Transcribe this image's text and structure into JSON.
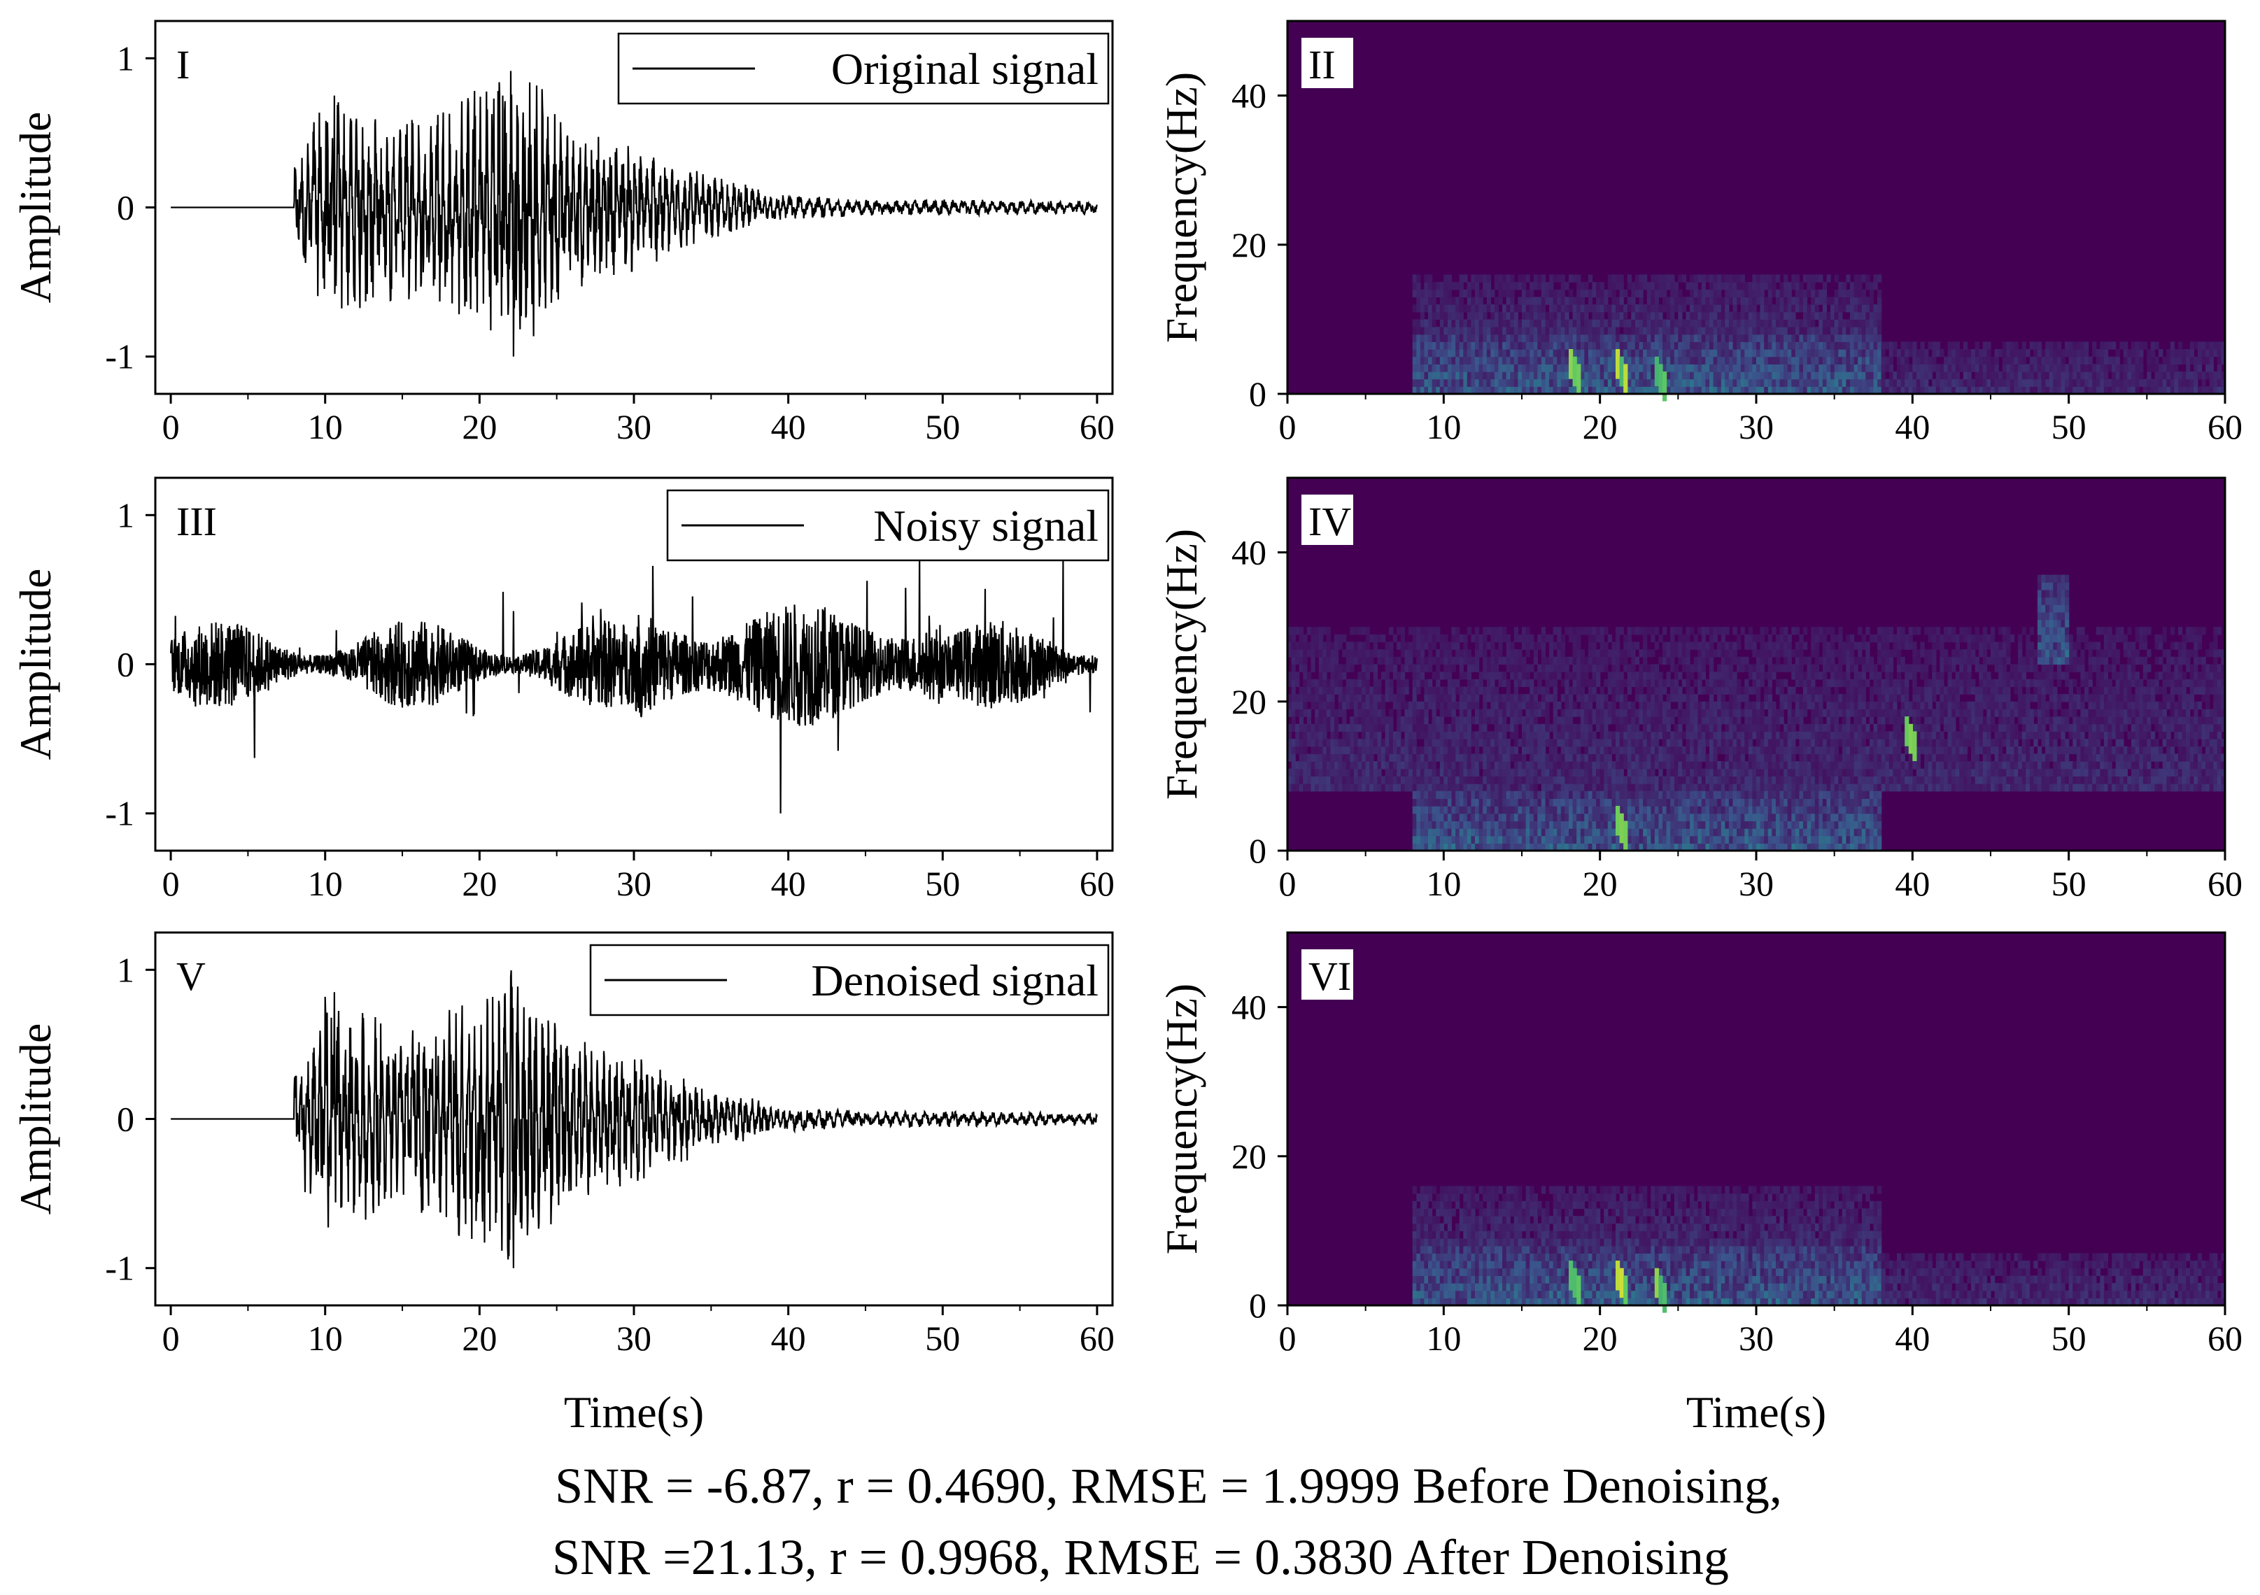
{
  "footer": {
    "line1": "SNR = -6.87, r = 0.4690, RMSE = 1.9999 Before Denoising,",
    "line2": "SNR =21.13, r = 0.9968, RMSE = 0.3830 After Denoising"
  },
  "colors": {
    "signal_line": "#000000",
    "spectrogram_background": "#440154",
    "colormap": [
      "#440154",
      "#3b528b",
      "#21918c",
      "#5ec962",
      "#fde725"
    ]
  },
  "chart_data": [
    {
      "id": "I",
      "type": "line",
      "panel_label": "I",
      "legend": "Original signal",
      "ylabel": "Amplitude",
      "xlabel": "Time(s)",
      "xlim": [
        -1,
        61
      ],
      "ylim": [
        -1.25,
        1.25
      ],
      "xticks": [
        "0",
        "10",
        "20",
        "30",
        "40",
        "50",
        "60"
      ],
      "yticks": [
        "1",
        "0",
        "-1"
      ],
      "series": [
        {
          "name": "Original signal",
          "onset_s": 8,
          "envelope": {
            "t": [
              8,
              10,
              15,
              20,
              22,
              26,
              30,
              35,
              38,
              40,
              45,
              50,
              60
            ],
            "amp": [
              0.25,
              0.75,
              0.55,
              0.75,
              1.0,
              0.5,
              0.4,
              0.2,
              0.12,
              0.08,
              0.05,
              0.05,
              0.04
            ]
          },
          "peaks": [
            {
              "t": 10.6,
              "y": 0.75
            },
            {
              "t": 21.5,
              "y": 0.75
            },
            {
              "t": 22.2,
              "y": -1.0
            }
          ]
        }
      ]
    },
    {
      "id": "II",
      "type": "heatmap",
      "panel_label": "II",
      "ylabel": "Frequency(Hz)",
      "xlabel": "Time(s)",
      "xlim": [
        0,
        60
      ],
      "ylim": [
        0,
        50
      ],
      "xticks": [
        "0",
        "10",
        "20",
        "30",
        "40",
        "50",
        "60"
      ],
      "yticks": [
        "0",
        "20",
        "40"
      ],
      "energy_regions": [
        {
          "t": [
            8,
            38
          ],
          "f": [
            0,
            8
          ],
          "level": "medium"
        },
        {
          "t": [
            8,
            38
          ],
          "f": [
            8,
            16
          ],
          "level": "low"
        },
        {
          "t": [
            38,
            60
          ],
          "f": [
            0,
            7
          ],
          "level": "low"
        }
      ],
      "hotspots": [
        {
          "t": 21,
          "f": 3
        },
        {
          "t": 23.5,
          "f": 2
        },
        {
          "t": 18,
          "f": 3
        }
      ]
    },
    {
      "id": "III",
      "type": "line",
      "panel_label": "III",
      "legend": "Noisy signal",
      "ylabel": "Amplitude",
      "xlabel": "Time(s)",
      "xlim": [
        -1,
        61
      ],
      "ylim": [
        -1.25,
        1.25
      ],
      "xticks": [
        "0",
        "10",
        "20",
        "30",
        "40",
        "50",
        "60"
      ],
      "yticks": [
        "1",
        "0",
        "-1"
      ],
      "series": [
        {
          "name": "Noisy signal",
          "noise_amplitude": 0.3,
          "peaks": [
            {
              "t": 39.5,
              "y": -1.0
            },
            {
              "t": 48.5,
              "y": 0.75
            },
            {
              "t": 57.8,
              "y": 0.7
            }
          ]
        }
      ]
    },
    {
      "id": "IV",
      "type": "heatmap",
      "panel_label": "IV",
      "ylabel": "Frequency(Hz)",
      "xlabel": "Time(s)",
      "xlim": [
        0,
        60
      ],
      "ylim": [
        0,
        50
      ],
      "xticks": [
        "0",
        "10",
        "20",
        "30",
        "40",
        "50",
        "60"
      ],
      "yticks": [
        "0",
        "20",
        "40"
      ],
      "energy_regions": [
        {
          "t": [
            0,
            60
          ],
          "f": [
            8,
            30
          ],
          "level": "low"
        },
        {
          "t": [
            8,
            38
          ],
          "f": [
            0,
            8
          ],
          "level": "medium"
        },
        {
          "t": [
            48,
            50
          ],
          "f": [
            25,
            37
          ],
          "level": "medium"
        }
      ],
      "hotspots": [
        {
          "t": 39.5,
          "f": 15
        },
        {
          "t": 21,
          "f": 3
        }
      ]
    },
    {
      "id": "V",
      "type": "line",
      "panel_label": "V",
      "legend": "Denoised signal",
      "ylabel": "Amplitude",
      "xlabel": "Time(s)",
      "xlim": [
        -1,
        61
      ],
      "ylim": [
        -1.25,
        1.25
      ],
      "xticks": [
        "0",
        "10",
        "20",
        "30",
        "40",
        "50",
        "60"
      ],
      "yticks": [
        "1",
        "0",
        "-1"
      ],
      "series": [
        {
          "name": "Denoised signal",
          "onset_s": 8,
          "envelope": {
            "t": [
              8,
              10,
              15,
              20,
              22,
              26,
              30,
              35,
              38,
              40,
              45,
              50,
              60
            ],
            "amp": [
              0.25,
              0.85,
              0.55,
              0.8,
              1.0,
              0.5,
              0.4,
              0.2,
              0.12,
              0.08,
              0.05,
              0.05,
              0.04
            ]
          },
          "peaks": [
            {
              "t": 10.6,
              "y": 0.85
            },
            {
              "t": 22.2,
              "y": -1.0
            }
          ]
        }
      ]
    },
    {
      "id": "VI",
      "type": "heatmap",
      "panel_label": "VI",
      "ylabel": "Frequency(Hz)",
      "xlabel": "Time(s)",
      "xlim": [
        0,
        60
      ],
      "ylim": [
        0,
        50
      ],
      "xticks": [
        "0",
        "10",
        "20",
        "30",
        "40",
        "50",
        "60"
      ],
      "yticks": [
        "0",
        "20",
        "40"
      ],
      "energy_regions": [
        {
          "t": [
            8,
            38
          ],
          "f": [
            0,
            8
          ],
          "level": "medium"
        },
        {
          "t": [
            8,
            38
          ],
          "f": [
            8,
            16
          ],
          "level": "low"
        },
        {
          "t": [
            38,
            60
          ],
          "f": [
            0,
            7
          ],
          "level": "low"
        }
      ],
      "hotspots": [
        {
          "t": 21,
          "f": 3
        },
        {
          "t": 23.5,
          "f": 2
        },
        {
          "t": 18,
          "f": 3
        }
      ]
    }
  ]
}
